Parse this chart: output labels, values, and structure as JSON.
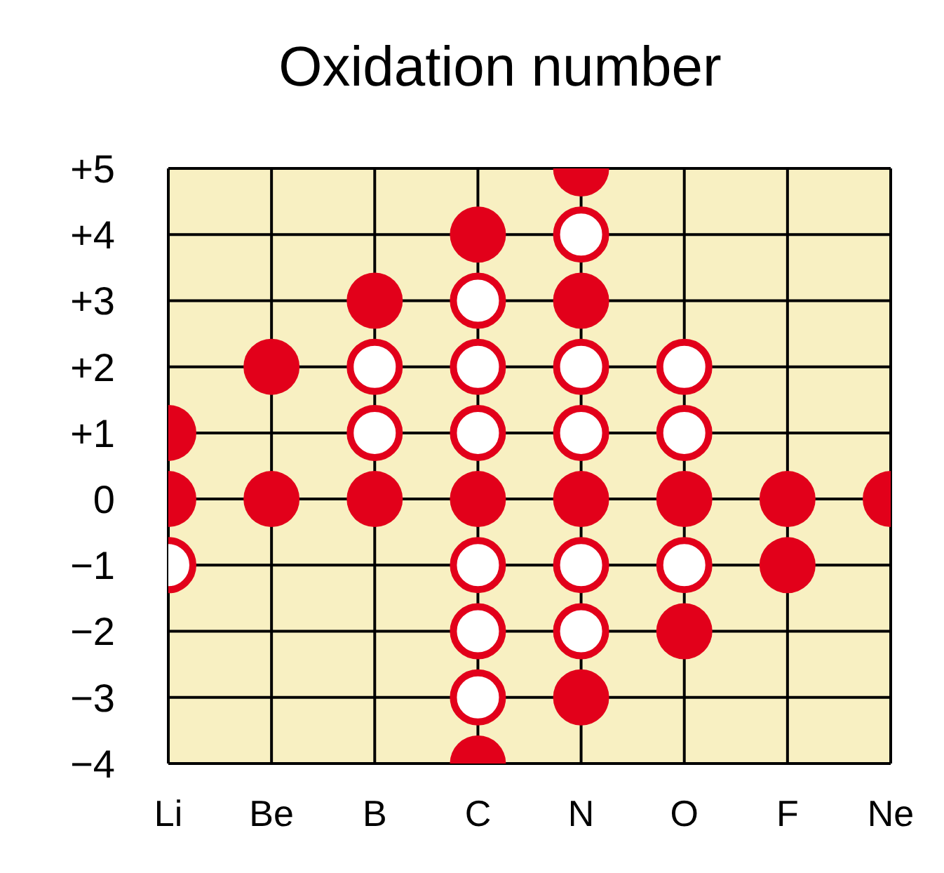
{
  "chart_data": {
    "type": "scatter",
    "title": "Oxidation number",
    "categories": [
      "Li",
      "Be",
      "B",
      "C",
      "N",
      "O",
      "F",
      "Ne"
    ],
    "series": [
      {
        "color": "#e2001a",
        "x": [
          "Li",
          "Li",
          "Be",
          "Be",
          "B",
          "B",
          "C",
          "C",
          "C",
          "N",
          "N",
          "N",
          "N",
          "O",
          "O",
          "F",
          "F",
          "Ne"
        ],
        "values": [
          1,
          0,
          2,
          0,
          3,
          0,
          4,
          0,
          -4,
          5,
          3,
          0,
          -3,
          0,
          -2,
          0,
          -1,
          0
        ]
      },
      {
        "color": "#ffffff",
        "x": [
          "Li",
          "B",
          "B",
          "C",
          "C",
          "C",
          "C",
          "C",
          "C",
          "N",
          "N",
          "N",
          "N",
          "N",
          "O",
          "O",
          "O"
        ],
        "values": [
          -1,
          2,
          1,
          3,
          2,
          1,
          -1,
          -2,
          -3,
          4,
          2,
          1,
          -1,
          -2,
          2,
          1,
          -1
        ]
      }
    ],
    "ylim": [
      -4,
      5
    ],
    "yticks": [
      {
        "value": 5,
        "label": "+5"
      },
      {
        "value": 4,
        "label": "+4"
      },
      {
        "value": 3,
        "label": "+3"
      },
      {
        "value": 2,
        "label": "+2"
      },
      {
        "value": 1,
        "label": "+1"
      },
      0,
      {
        "value": -1,
        "label": "−1"
      },
      {
        "value": -2,
        "label": "−2"
      },
      {
        "value": -3,
        "label": "−3"
      },
      {
        "value": -4,
        "label": "−4"
      }
    ],
    "grid": true,
    "marker": "circle"
  }
}
